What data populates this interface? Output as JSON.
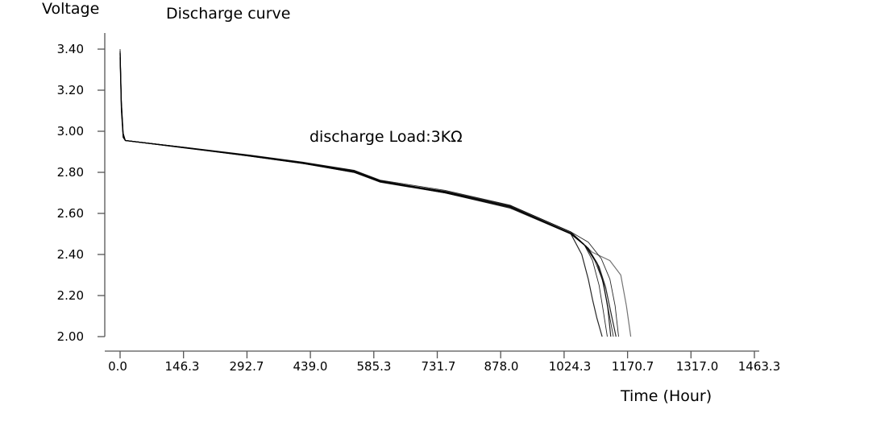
{
  "chart_data": {
    "type": "line",
    "title": "Discharge curve",
    "ylabel": "Voltage",
    "xlabel": "Time (Hour)",
    "annotation": "discharge Load:3KΩ",
    "xlim": [
      0,
      1463.3
    ],
    "ylim": [
      2.0,
      3.4
    ],
    "xticks": [
      "0.0",
      "146.3",
      "292.7",
      "439.0",
      "585.3",
      "731.7",
      "878.0",
      "1024.3",
      "1170.7",
      "1317.0",
      "1463.3"
    ],
    "yticks": [
      "2.00",
      "2.20",
      "2.40",
      "2.60",
      "2.80",
      "3.00",
      "3.20",
      "3.40"
    ],
    "grid": false,
    "line_color": "#000000",
    "series": [
      {
        "x": [
          0,
          3,
          7,
          12,
          150,
          300,
          420,
          540,
          600,
          750,
          900,
          1040,
          1065,
          1080,
          1090,
          1100,
          1112
        ],
        "y": [
          3.38,
          3.12,
          2.98,
          2.955,
          2.92,
          2.88,
          2.845,
          2.8,
          2.755,
          2.7,
          2.63,
          2.5,
          2.4,
          2.28,
          2.18,
          2.09,
          2.0
        ]
      },
      {
        "x": [
          0,
          3,
          7,
          12,
          150,
          300,
          420,
          540,
          600,
          750,
          900,
          1040,
          1070,
          1090,
          1105,
          1115,
          1124
        ],
        "y": [
          3.4,
          3.15,
          2.99,
          2.955,
          2.918,
          2.878,
          2.843,
          2.805,
          2.76,
          2.703,
          2.635,
          2.505,
          2.45,
          2.37,
          2.25,
          2.12,
          2.0
        ]
      },
      {
        "x": [
          0,
          3,
          7,
          12,
          150,
          300,
          420,
          540,
          600,
          750,
          900,
          1040,
          1075,
          1100,
          1115,
          1125,
          1132
        ],
        "y": [
          3.36,
          3.1,
          2.97,
          2.955,
          2.92,
          2.882,
          2.848,
          2.808,
          2.758,
          2.706,
          2.632,
          2.5,
          2.44,
          2.36,
          2.26,
          2.14,
          2.0
        ]
      },
      {
        "x": [
          0,
          3,
          7,
          12,
          150,
          300,
          420,
          540,
          600,
          750,
          900,
          1040,
          1070,
          1095,
          1112,
          1124,
          1138
        ],
        "y": [
          3.37,
          3.13,
          2.98,
          2.955,
          2.921,
          2.88,
          2.846,
          2.802,
          2.754,
          2.708,
          2.638,
          2.51,
          2.45,
          2.37,
          2.28,
          2.16,
          2.0
        ]
      },
      {
        "x": [
          0,
          3,
          7,
          12,
          150,
          300,
          420,
          540,
          600,
          750,
          900,
          1040,
          1080,
          1105,
          1120,
          1132,
          1144
        ],
        "y": [
          3.39,
          3.14,
          2.99,
          2.955,
          2.92,
          2.879,
          2.844,
          2.8,
          2.752,
          2.7,
          2.626,
          2.5,
          2.43,
          2.34,
          2.24,
          2.12,
          2.0
        ]
      },
      {
        "x": [
          0,
          3,
          7,
          12,
          150,
          300,
          420,
          540,
          600,
          750,
          900,
          1040,
          1080,
          1110,
          1130,
          1142,
          1150
        ],
        "y": [
          3.37,
          3.11,
          2.97,
          2.955,
          2.922,
          2.884,
          2.85,
          2.81,
          2.762,
          2.712,
          2.64,
          2.51,
          2.46,
          2.38,
          2.28,
          2.15,
          2.0
        ]
      },
      {
        "x": [
          0,
          3,
          7,
          12,
          150,
          300,
          420,
          540,
          600,
          750,
          900,
          1040,
          1090,
          1130,
          1155,
          1168,
          1178
        ],
        "y": [
          3.38,
          3.12,
          2.98,
          2.955,
          2.919,
          2.881,
          2.847,
          2.806,
          2.756,
          2.705,
          2.633,
          2.505,
          2.41,
          2.37,
          2.3,
          2.15,
          2.0
        ]
      }
    ]
  }
}
